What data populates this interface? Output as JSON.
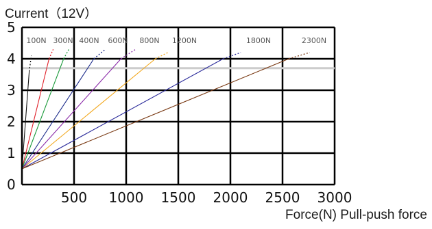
{
  "chart_data": {
    "type": "line",
    "title": "",
    "ylabel": "Current（12V）",
    "xlabel": "Force(N) Pull-push force",
    "xlim": [
      0,
      3000
    ],
    "ylim": [
      0,
      5
    ],
    "x_ticks": [
      "500",
      "1000",
      "1500",
      "2000",
      "2500",
      "3000"
    ],
    "y_ticks": [
      "0",
      "1",
      "2",
      "3",
      "4",
      "5"
    ],
    "grid": true,
    "reference_line_y": 3.7,
    "reference_line_color": "#cccccc",
    "origin": [
      0,
      0.5
    ],
    "series": [
      {
        "name": "100N",
        "color": "#111111",
        "solid_end": [
          70,
          3.6
        ],
        "dotted_end": [
          90,
          4.1
        ]
      },
      {
        "name": "300N",
        "color": "#e0202a",
        "solid_end": [
          260,
          4.0
        ],
        "dotted_end": [
          300,
          4.3
        ]
      },
      {
        "name": "400N",
        "color": "#1a9a3a",
        "solid_end": [
          400,
          4.0
        ],
        "dotted_end": [
          450,
          4.3
        ]
      },
      {
        "name": "600N",
        "color": "#1a2a8a",
        "solid_end": [
          690,
          4.0
        ],
        "dotted_end": [
          800,
          4.3
        ]
      },
      {
        "name": "800N",
        "color": "#8a2aa8",
        "solid_end": [
          950,
          4.0
        ],
        "dotted_end": [
          1090,
          4.3
        ]
      },
      {
        "name": "1200N",
        "color": "#f2a81e",
        "solid_end": [
          1280,
          4.0
        ],
        "dotted_end": [
          1400,
          4.2
        ]
      },
      {
        "name": "1800N",
        "color": "#2a2a9a",
        "solid_end": [
          1930,
          4.0
        ],
        "dotted_end": [
          2100,
          4.2
        ]
      },
      {
        "name": "2300N",
        "color": "#7a3a14",
        "solid_end": [
          2560,
          4.0
        ],
        "dotted_end": [
          2760,
          4.2
        ]
      }
    ]
  }
}
